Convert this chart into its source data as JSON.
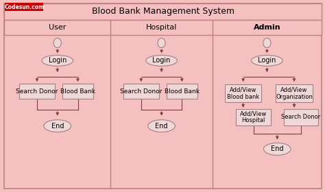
{
  "title": "Blood Bank Management System",
  "sections": [
    "User",
    "Hospital",
    "Admin"
  ],
  "bg_color": "#f5c0c0",
  "border_color": "#c08080",
  "box_fill": "#f0d8d8",
  "box_edge": "#a08080",
  "ellipse_fill": "#f0d8d8",
  "ellipse_edge": "#a08080",
  "header_fill": "#f5c0c0",
  "watermark_text": "Codesun.com",
  "watermark_bg": "#cc0000",
  "watermark_color": "#ffffff"
}
